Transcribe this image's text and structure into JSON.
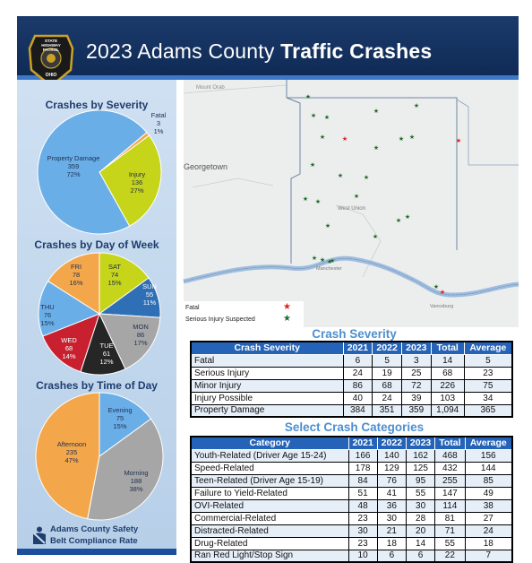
{
  "header": {
    "title_prefix": "2023 Adams County ",
    "title_bold": "Traffic Crashes",
    "badge": {
      "line1": "STATE",
      "line2": "HIGHWAY",
      "line3": "PATROL",
      "line4": "OHIO"
    }
  },
  "severity_pie": {
    "title": "Crashes by Severity",
    "slices": [
      {
        "label": "Fatal",
        "count": "3",
        "pct": "1%",
        "value": 1,
        "color": "#f4a74a"
      },
      {
        "label": "Injury",
        "count": "136",
        "pct": "27%",
        "value": 27,
        "color": "#c6d41a"
      },
      {
        "label": "Property Damage",
        "count": "359",
        "pct": "72%",
        "value": 72,
        "color": "#6aaee8"
      }
    ]
  },
  "day_pie": {
    "title": "Crashes by Day of Week",
    "slices": [
      {
        "label": "SAT",
        "count": "74",
        "pct": "15%",
        "value": 15,
        "color": "#c6d41a"
      },
      {
        "label": "SUN",
        "count": "55",
        "pct": "11%",
        "value": 11,
        "color": "#2f6fb6"
      },
      {
        "label": "MON",
        "count": "86",
        "pct": "17%",
        "value": 17,
        "color": "#a6a6a6"
      },
      {
        "label": "TUE",
        "count": "61",
        "pct": "12%",
        "value": 12,
        "color": "#262626"
      },
      {
        "label": "WED",
        "count": "68",
        "pct": "14%",
        "value": 14,
        "color": "#c8202f"
      },
      {
        "label": "THU",
        "count": "76",
        "pct": "15%",
        "value": 15,
        "color": "#6aaee8"
      },
      {
        "label": "FRI",
        "count": "78",
        "pct": "16%",
        "value": 16,
        "color": "#f4a74a"
      }
    ]
  },
  "time_pie": {
    "title": "Crashes by Time of Day",
    "slices": [
      {
        "label": "Evening",
        "count": "75",
        "pct": "15%",
        "value": 15,
        "color": "#6aaee8"
      },
      {
        "label": "Morning",
        "count": "188",
        "pct": "38%",
        "value": 38,
        "color": "#a6a6a6"
      },
      {
        "label": "Afternoon",
        "count": "235",
        "pct": "47%",
        "value": 47,
        "color": "#f4a74a"
      }
    ]
  },
  "belt": {
    "line1": "Adams County Safety",
    "line2": "Belt Compliance Rate"
  },
  "map": {
    "places": [
      "Mount Orab",
      "Georgetown",
      "West Union",
      "Manchester",
      "Vanceburg"
    ],
    "legend": [
      {
        "label": "Fatal",
        "color": "#e02020"
      },
      {
        "label": "Serious Injury Suspected",
        "color": "#1e6b2a"
      }
    ]
  },
  "severity_table": {
    "title": "Crash Severity",
    "headers": [
      "Crash Severity",
      "2021",
      "2022",
      "2023",
      "Total",
      "Average"
    ],
    "rows": [
      [
        "Fatal",
        "6",
        "5",
        "3",
        "14",
        "5"
      ],
      [
        "Serious Injury",
        "24",
        "19",
        "25",
        "68",
        "23"
      ],
      [
        "Minor Injury",
        "86",
        "68",
        "72",
        "226",
        "75"
      ],
      [
        "Injury Possible",
        "40",
        "24",
        "39",
        "103",
        "34"
      ],
      [
        "Property Damage",
        "384",
        "351",
        "359",
        "1,094",
        "365"
      ]
    ]
  },
  "categories_table": {
    "title": "Select Crash Categories",
    "headers": [
      "Category",
      "2021",
      "2022",
      "2023",
      "Total",
      "Average"
    ],
    "rows": [
      [
        "Youth-Related (Driver Age 15-24)",
        "166",
        "140",
        "162",
        "468",
        "156"
      ],
      [
        "Speed-Related",
        "178",
        "129",
        "125",
        "432",
        "144"
      ],
      [
        "Teen-Related (Driver Age 15-19)",
        "84",
        "76",
        "95",
        "255",
        "85"
      ],
      [
        "Failure to Yield-Related",
        "51",
        "41",
        "55",
        "147",
        "49"
      ],
      [
        "OVI-Related",
        "48",
        "36",
        "30",
        "114",
        "38"
      ],
      [
        "Commercial-Related",
        "23",
        "30",
        "28",
        "81",
        "27"
      ],
      [
        "Distracted-Related",
        "30",
        "21",
        "20",
        "71",
        "24"
      ],
      [
        "Drug-Related",
        "23",
        "18",
        "14",
        "55",
        "18"
      ],
      [
        "Ran Red Light/Stop Sign",
        "10",
        "6",
        "6",
        "22",
        "7"
      ]
    ]
  }
}
